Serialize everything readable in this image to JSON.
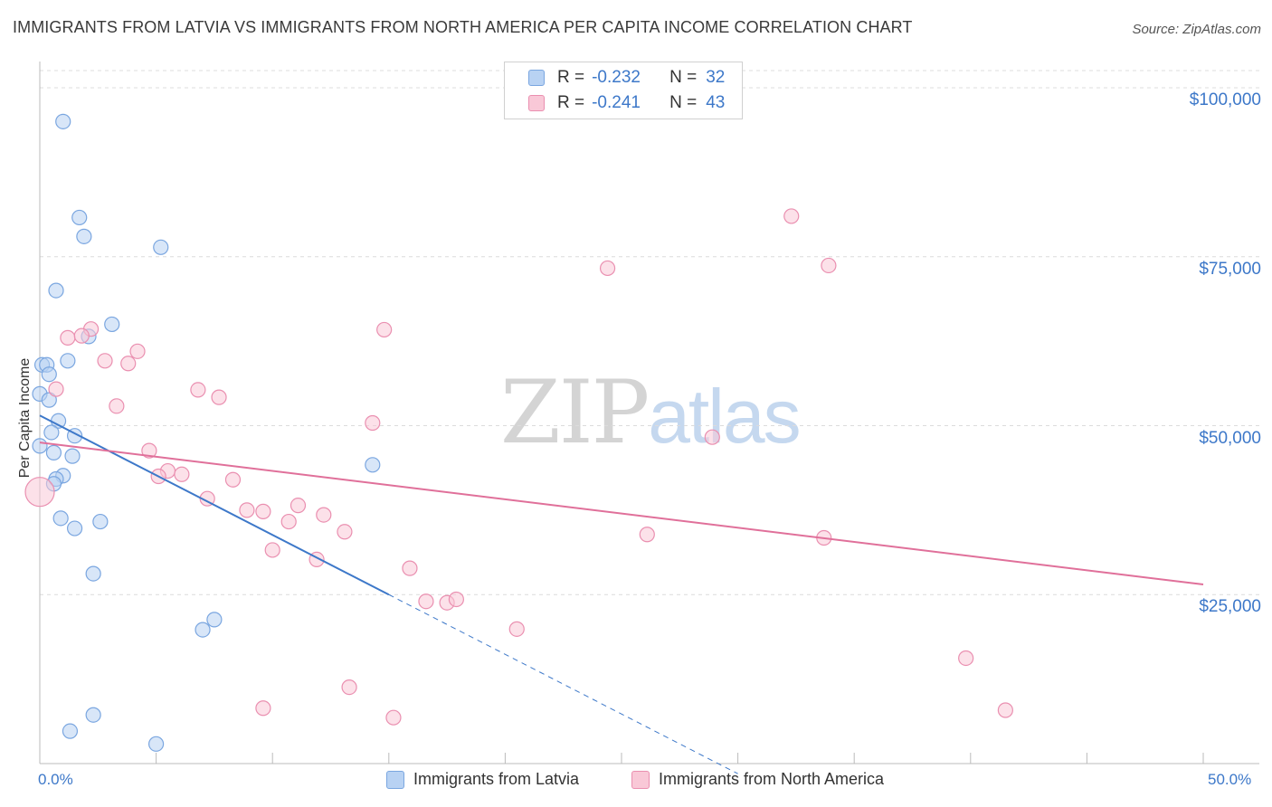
{
  "chart_data": {
    "type": "scatter",
    "title": "IMMIGRANTS FROM LATVIA VS IMMIGRANTS FROM NORTH AMERICA PER CAPITA INCOME CORRELATION CHART",
    "source": "Source: ZipAtlas.com",
    "ylabel": "Per Capita Income",
    "xlabel": "",
    "xlim": [
      0,
      50
    ],
    "ylim": [
      0,
      105000
    ],
    "x_tick_labels": [
      "0.0%",
      "50.0%"
    ],
    "y_ticks": [
      {
        "value": 25000,
        "label": "$25,000"
      },
      {
        "value": 50000,
        "label": "$50,000"
      },
      {
        "value": 75000,
        "label": "$75,000"
      },
      {
        "value": 100000,
        "label": "$100,000"
      }
    ],
    "watermark": {
      "zip": "ZIP",
      "atlas": "atlas"
    },
    "legend_stats": [
      {
        "r_key": "R =",
        "r_value": "-0.232",
        "n_key": "N =",
        "n_value": "32"
      },
      {
        "r_key": "R =",
        "r_value": "-0.241",
        "n_key": "N =",
        "n_value": "43"
      }
    ],
    "series": [
      {
        "name": "Immigrants from Latvia",
        "color": "#7aa6e0",
        "fill": "#b8d2f3",
        "trend": {
          "x0": 0,
          "y0": 51500,
          "x1": 15,
          "y1": 25000,
          "dash_to_x": 30
        },
        "points": [
          [
            1.0,
            95000
          ],
          [
            1.7,
            80800
          ],
          [
            1.9,
            78000
          ],
          [
            5.2,
            76400
          ],
          [
            0.7,
            70000
          ],
          [
            3.1,
            65000
          ],
          [
            2.1,
            63200
          ],
          [
            0.1,
            59000
          ],
          [
            0.3,
            59000
          ],
          [
            1.2,
            59600
          ],
          [
            0.4,
            57600
          ],
          [
            0.0,
            54700
          ],
          [
            0.4,
            53800
          ],
          [
            0.8,
            50700
          ],
          [
            0.5,
            49000
          ],
          [
            1.5,
            48500
          ],
          [
            0.0,
            47000
          ],
          [
            0.6,
            46000
          ],
          [
            1.4,
            45500
          ],
          [
            1.0,
            42600
          ],
          [
            0.7,
            42100
          ],
          [
            0.6,
            41400
          ],
          [
            0.9,
            36300
          ],
          [
            1.5,
            34800
          ],
          [
            2.6,
            35800
          ],
          [
            14.3,
            44200
          ],
          [
            2.3,
            28100
          ],
          [
            7.0,
            19800
          ],
          [
            7.5,
            21300
          ],
          [
            2.3,
            7200
          ],
          [
            1.3,
            4800
          ],
          [
            5.0,
            2900
          ]
        ]
      },
      {
        "name": "Immigrants from North America",
        "color": "#ea8fb0",
        "fill": "#f9c8d7",
        "trend": {
          "x0": 0,
          "y0": 47500,
          "x1": 50,
          "y1": 26500
        },
        "points": [
          [
            32.3,
            81000
          ],
          [
            24.4,
            73300
          ],
          [
            33.9,
            73700
          ],
          [
            14.8,
            64200
          ],
          [
            2.2,
            64300
          ],
          [
            1.2,
            63000
          ],
          [
            1.8,
            63300
          ],
          [
            4.2,
            61000
          ],
          [
            2.8,
            59600
          ],
          [
            3.8,
            59200
          ],
          [
            0.7,
            55400
          ],
          [
            6.8,
            55300
          ],
          [
            7.7,
            54200
          ],
          [
            3.3,
            52900
          ],
          [
            14.3,
            50400
          ],
          [
            28.9,
            48300
          ],
          [
            4.7,
            46300
          ],
          [
            5.5,
            43300
          ],
          [
            6.1,
            42800
          ],
          [
            5.1,
            42500
          ],
          [
            8.3,
            42000
          ],
          [
            7.2,
            39200
          ],
          [
            0.0,
            40200
          ],
          [
            8.9,
            37500
          ],
          [
            9.6,
            37300
          ],
          [
            11.1,
            38200
          ],
          [
            12.2,
            36800
          ],
          [
            10.7,
            35800
          ],
          [
            13.1,
            34300
          ],
          [
            26.1,
            33900
          ],
          [
            33.7,
            33400
          ],
          [
            10.0,
            31600
          ],
          [
            11.9,
            30200
          ],
          [
            15.9,
            28900
          ],
          [
            16.6,
            24000
          ],
          [
            17.5,
            23800
          ],
          [
            17.9,
            24300
          ],
          [
            20.5,
            19900
          ],
          [
            39.8,
            15600
          ],
          [
            13.3,
            11300
          ],
          [
            9.6,
            8200
          ],
          [
            15.2,
            6800
          ],
          [
            41.5,
            7900
          ]
        ]
      }
    ],
    "legend_position": "bottom"
  }
}
